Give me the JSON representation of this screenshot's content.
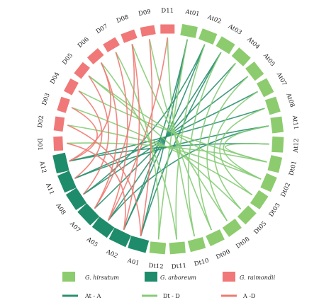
{
  "colors": {
    "hirsutum": "#8ccc6e",
    "arboreum": "#1e8c6a",
    "raimondii": "#f07878",
    "link_at_a": "#2a9070",
    "link_dt_d": "#86cc76",
    "link_a_d": "#ee7a72"
  },
  "chromosomes": [
    {
      "id": "At01",
      "label": "At01",
      "group": "hirsutum"
    },
    {
      "id": "At02",
      "label": "At02",
      "group": "hirsutum"
    },
    {
      "id": "At03",
      "label": "At03",
      "group": "hirsutum"
    },
    {
      "id": "At04",
      "label": "At04",
      "group": "hirsutum"
    },
    {
      "id": "At05",
      "label": "At05",
      "group": "hirsutum"
    },
    {
      "id": "At07",
      "label": "At07",
      "group": "hirsutum"
    },
    {
      "id": "At08",
      "label": "At08",
      "group": "hirsutum"
    },
    {
      "id": "At11",
      "label": "At11",
      "group": "hirsutum"
    },
    {
      "id": "At12",
      "label": "At12",
      "group": "hirsutum"
    },
    {
      "id": "Dt01",
      "label": "Dt01",
      "group": "hirsutum"
    },
    {
      "id": "Dt02",
      "label": "Dt02",
      "group": "hirsutum"
    },
    {
      "id": "Dt03",
      "label": "Dt03",
      "group": "hirsutum"
    },
    {
      "id": "Dt05",
      "label": "Dt05",
      "group": "hirsutum"
    },
    {
      "id": "Dt08",
      "label": "Dt08",
      "group": "hirsutum"
    },
    {
      "id": "Dt09",
      "label": "Dt09",
      "group": "hirsutum"
    },
    {
      "id": "Dt10",
      "label": "Dt10",
      "group": "hirsutum"
    },
    {
      "id": "Dt11",
      "label": "Dt11",
      "group": "hirsutum"
    },
    {
      "id": "Dt12",
      "label": "Dt12",
      "group": "hirsutum"
    },
    {
      "id": "A01",
      "label": "A01",
      "group": "arboreum"
    },
    {
      "id": "A02",
      "label": "A02",
      "group": "arboreum"
    },
    {
      "id": "A05",
      "label": "A05",
      "group": "arboreum"
    },
    {
      "id": "A07",
      "label": "A07",
      "group": "arboreum"
    },
    {
      "id": "A08",
      "label": "A08",
      "group": "arboreum"
    },
    {
      "id": "A11",
      "label": "A11",
      "group": "arboreum"
    },
    {
      "id": "A12",
      "label": "A12",
      "group": "arboreum"
    },
    {
      "id": "D01",
      "label": "D01",
      "group": "raimondii"
    },
    {
      "id": "D02",
      "label": "D02",
      "group": "raimondii"
    },
    {
      "id": "D03",
      "label": "D03",
      "group": "raimondii"
    },
    {
      "id": "D04",
      "label": "D04",
      "group": "raimondii"
    },
    {
      "id": "D05",
      "label": "D05",
      "group": "raimondii"
    },
    {
      "id": "D06",
      "label": "D06",
      "group": "raimondii"
    },
    {
      "id": "D07",
      "label": "D07",
      "group": "raimondii"
    },
    {
      "id": "D08",
      "label": "D08",
      "group": "raimondii"
    },
    {
      "id": "D09",
      "label": "D09",
      "group": "raimondii"
    },
    {
      "id": "D11",
      "label": "D11",
      "group": "raimondii"
    }
  ],
  "links": [
    {
      "from": "At01",
      "to": "A01",
      "type": "at_a"
    },
    {
      "from": "At02",
      "to": "A02",
      "type": "at_a"
    },
    {
      "from": "At03",
      "to": "A05",
      "type": "at_a"
    },
    {
      "from": "At04",
      "to": "A07",
      "type": "at_a"
    },
    {
      "from": "At05",
      "to": "A08",
      "type": "at_a"
    },
    {
      "from": "At07",
      "to": "A11",
      "type": "at_a"
    },
    {
      "from": "At08",
      "to": "A12",
      "type": "at_a"
    },
    {
      "from": "At11",
      "to": "A11",
      "type": "at_a"
    },
    {
      "from": "At12",
      "to": "A12",
      "type": "at_a"
    },
    {
      "from": "At02",
      "to": "A08",
      "type": "at_a"
    },
    {
      "from": "At03",
      "to": "A01",
      "type": "at_a"
    },
    {
      "from": "At01",
      "to": "A02",
      "type": "at_a"
    },
    {
      "from": "At11",
      "to": "A05",
      "type": "at_a"
    },
    {
      "from": "Dt01",
      "to": "D01",
      "type": "dt_d"
    },
    {
      "from": "Dt02",
      "to": "D02",
      "type": "dt_d"
    },
    {
      "from": "Dt03",
      "to": "D03",
      "type": "dt_d"
    },
    {
      "from": "Dt05",
      "to": "D05",
      "type": "dt_d"
    },
    {
      "from": "Dt08",
      "to": "D08",
      "type": "dt_d"
    },
    {
      "from": "Dt09",
      "to": "D09",
      "type": "dt_d"
    },
    {
      "from": "Dt10",
      "to": "D11",
      "type": "dt_d"
    },
    {
      "from": "Dt11",
      "to": "D06",
      "type": "dt_d"
    },
    {
      "from": "Dt12",
      "to": "D07",
      "type": "dt_d"
    },
    {
      "from": "Dt01",
      "to": "D04",
      "type": "dt_d"
    },
    {
      "from": "Dt02",
      "to": "D05",
      "type": "dt_d"
    },
    {
      "from": "At01",
      "to": "Dt12",
      "type": "dt_d"
    },
    {
      "from": "At02",
      "to": "Dt11",
      "type": "dt_d"
    },
    {
      "from": "At03",
      "to": "Dt10",
      "type": "dt_d"
    },
    {
      "from": "At04",
      "to": "Dt09",
      "type": "dt_d"
    },
    {
      "from": "At05",
      "to": "Dt08",
      "type": "dt_d"
    },
    {
      "from": "At07",
      "to": "Dt05",
      "type": "dt_d"
    },
    {
      "from": "At08",
      "to": "Dt03",
      "type": "dt_d"
    },
    {
      "from": "At11",
      "to": "Dt02",
      "type": "dt_d"
    },
    {
      "from": "At12",
      "to": "Dt01",
      "type": "dt_d"
    },
    {
      "from": "D09",
      "to": "A01",
      "type": "a_d"
    },
    {
      "from": "D08",
      "to": "A02",
      "type": "a_d"
    },
    {
      "from": "D07",
      "to": "A05",
      "type": "a_d"
    },
    {
      "from": "D06",
      "to": "A07",
      "type": "a_d"
    },
    {
      "from": "D05",
      "to": "A08",
      "type": "a_d"
    },
    {
      "from": "D04",
      "to": "A11",
      "type": "a_d"
    },
    {
      "from": "D03",
      "to": "A12",
      "type": "a_d"
    },
    {
      "from": "D02",
      "to": "A01",
      "type": "a_d"
    },
    {
      "from": "D01",
      "to": "A02",
      "type": "a_d"
    },
    {
      "from": "D11",
      "to": "A05",
      "type": "a_d"
    },
    {
      "from": "D08",
      "to": "A07",
      "type": "a_d"
    },
    {
      "from": "D06",
      "to": "A12",
      "type": "a_d"
    }
  ],
  "legend": {
    "species": [
      {
        "key": "hirsutum",
        "label": "G. hirsutum"
      },
      {
        "key": "arboreum",
        "label": "G. arboreum"
      },
      {
        "key": "raimondii",
        "label": "G. raimondii"
      }
    ],
    "links": [
      {
        "key": "link_at_a",
        "label": "At - A"
      },
      {
        "key": "link_dt_d",
        "label": "Dt - D"
      },
      {
        "key": "link_a_d",
        "label": "A -D"
      }
    ]
  }
}
